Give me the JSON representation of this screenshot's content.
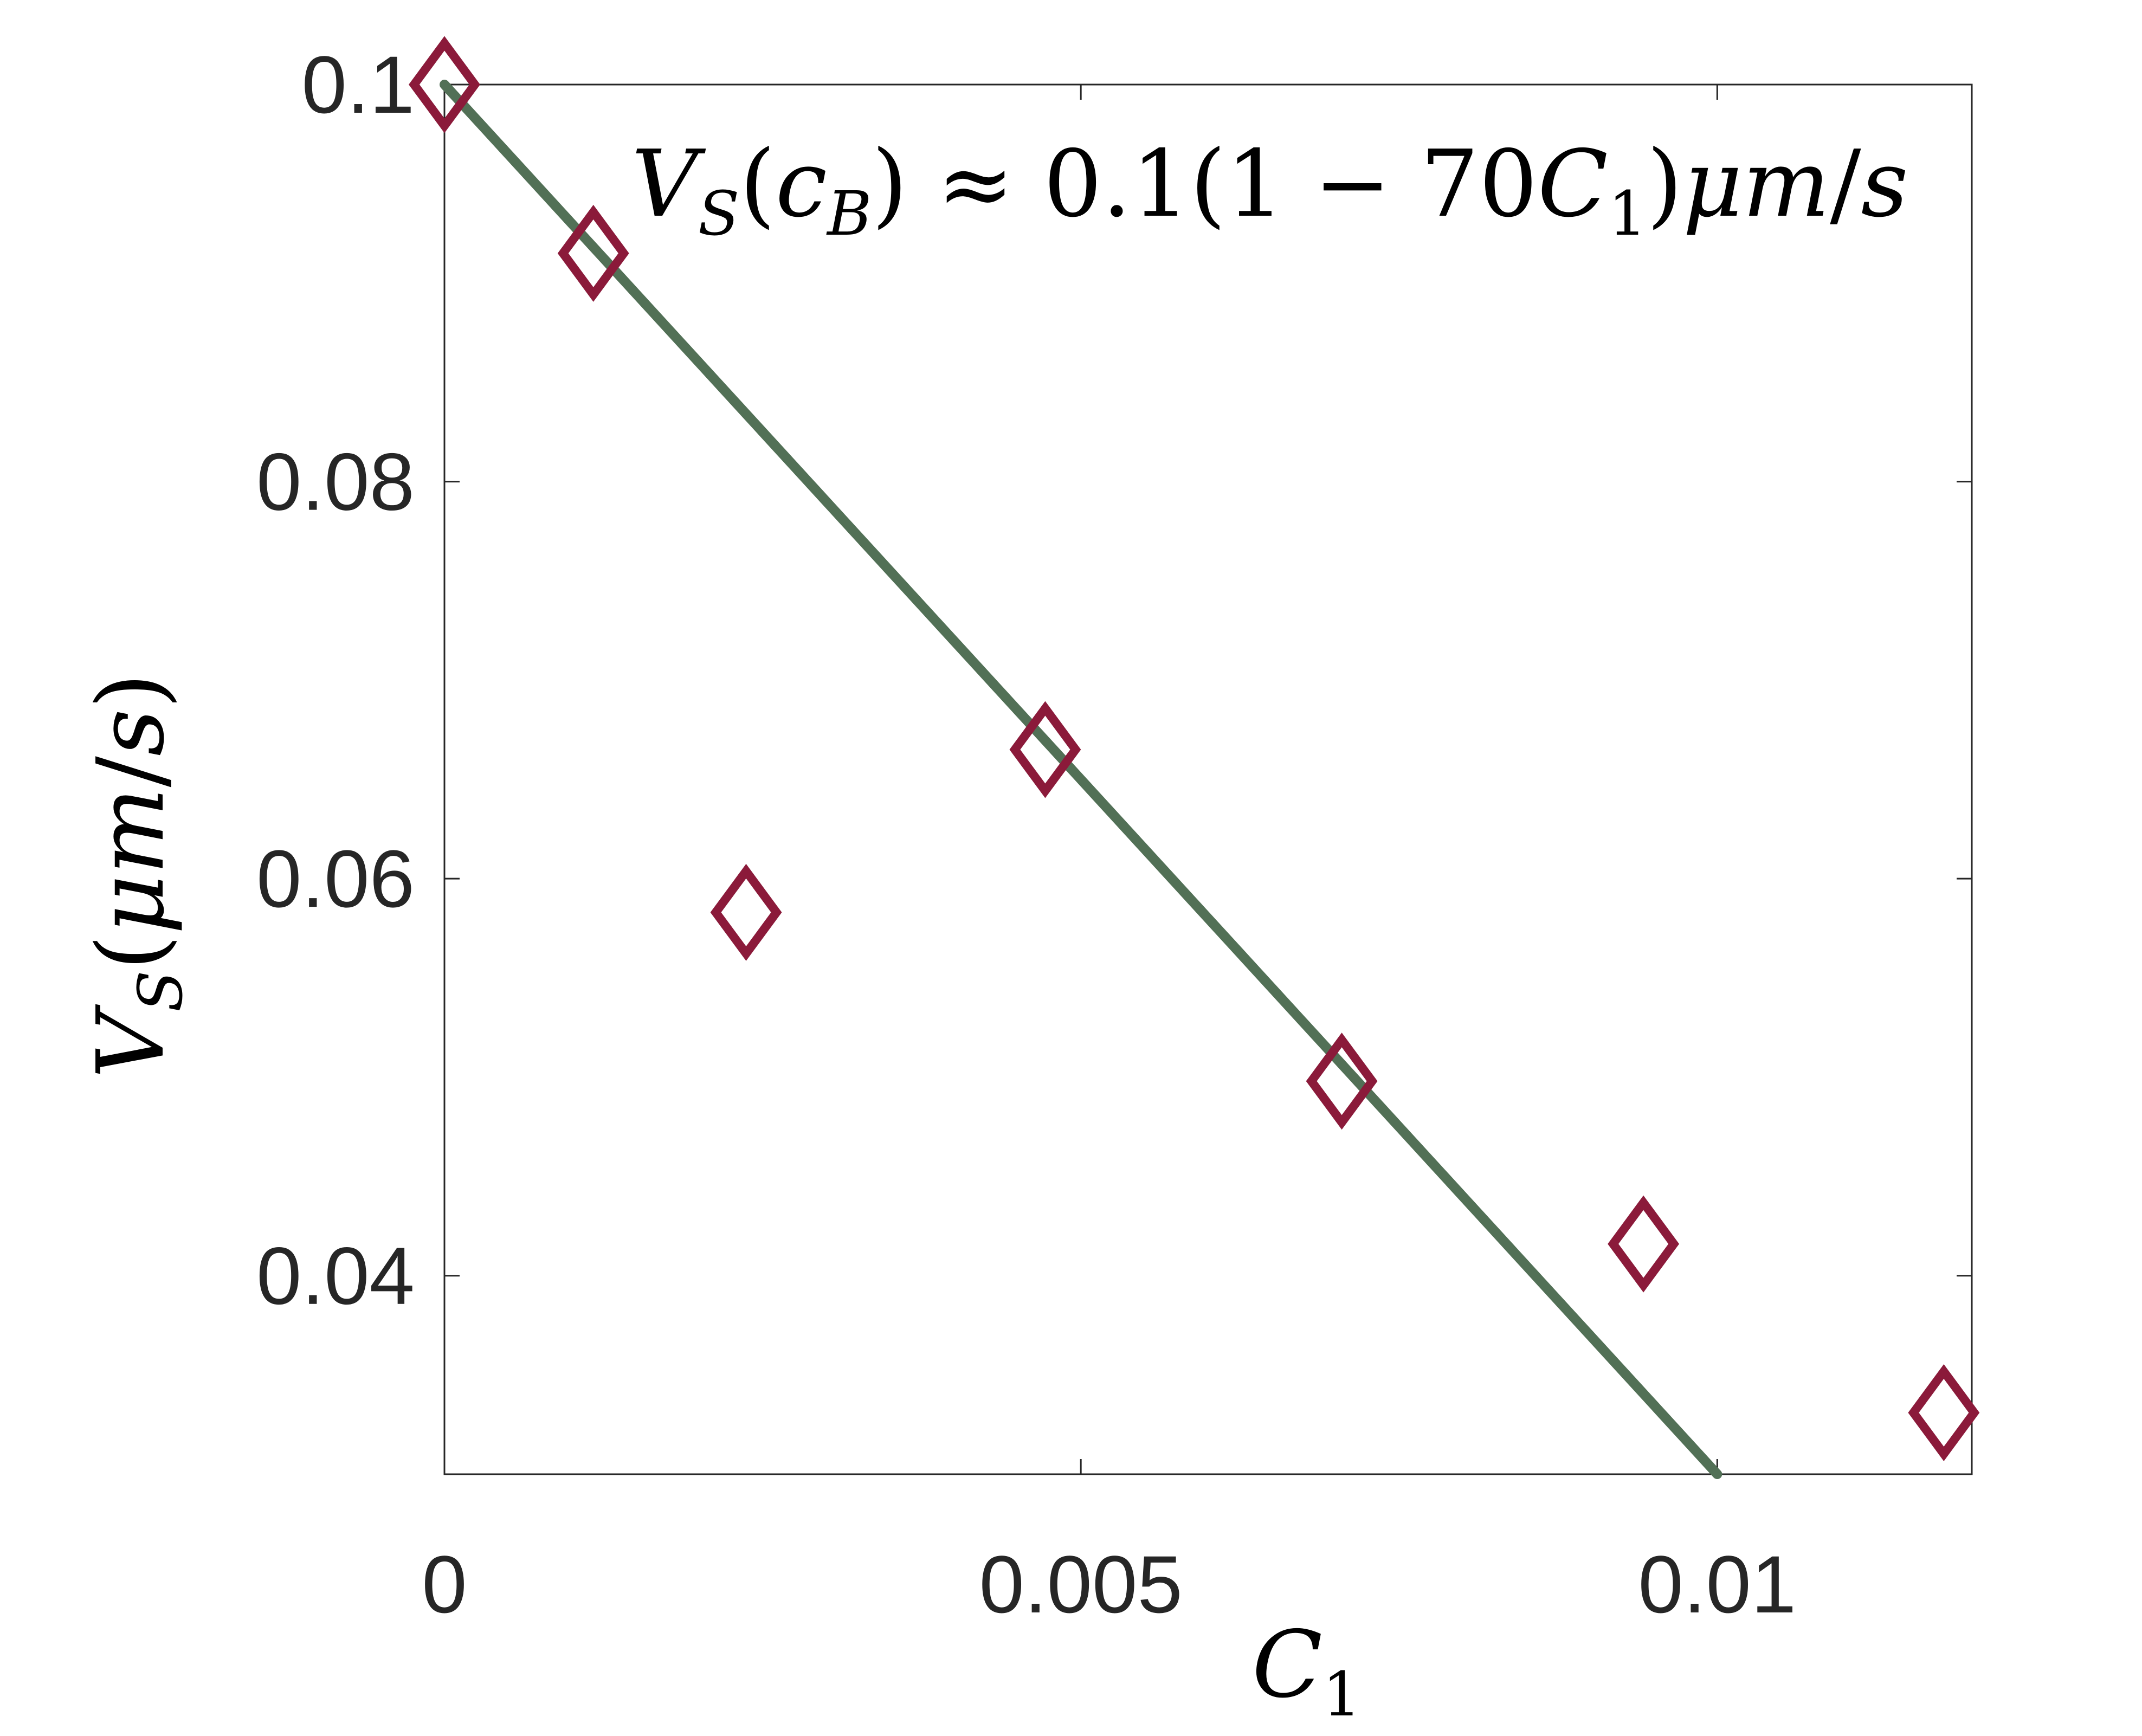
{
  "chart_data": {
    "type": "scatter",
    "title": "",
    "xlabel": "C1",
    "ylabel": "VS(μm/s)",
    "xlim": [
      0,
      0.012
    ],
    "ylim": [
      0.03,
      0.1
    ],
    "xticks": [
      "0",
      "0.005",
      "0.01"
    ],
    "yticks": [
      "0.04",
      "0.06",
      "0.08",
      "0.1"
    ],
    "xtick_values": [
      0,
      0.005,
      0.01
    ],
    "ytick_values": [
      0.04,
      0.06,
      0.08,
      0.1
    ],
    "grid": false,
    "series": [
      {
        "kind": "scatter",
        "marker": "diamond",
        "color": "#8b1a3a",
        "x": [
          0.0,
          0.00117,
          0.00237,
          0.00472,
          0.00705,
          0.00942,
          0.01178
        ],
        "y": [
          0.1,
          0.0915,
          0.0583,
          0.0665,
          0.0498,
          0.0416,
          0.0331
        ]
      },
      {
        "kind": "line",
        "color": "#527056",
        "x": [
          0.0,
          0.01
        ],
        "y": [
          0.1,
          0.03
        ]
      }
    ],
    "annotation": "VS(cB) ≈ 0.1(1 − 70C1)μm/s"
  }
}
